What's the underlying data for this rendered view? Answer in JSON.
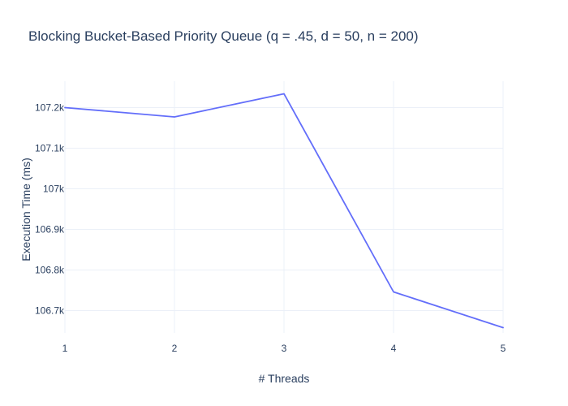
{
  "chart_data": {
    "type": "line",
    "title": "Blocking Bucket-Based Priority Queue (q = .45, d = 50, n = 200)",
    "xlabel": "# Threads",
    "ylabel": "Execution Time (ms)",
    "x": [
      1,
      2,
      3,
      4,
      5
    ],
    "series": [
      {
        "values": [
          107200,
          107177,
          107234,
          106746,
          106658
        ],
        "color": "#636efa"
      }
    ],
    "xlim": [
      1,
      5
    ],
    "ylim": [
      106645,
      107265
    ],
    "x_ticks": [
      1,
      2,
      3,
      4,
      5
    ],
    "x_tick_labels": [
      "1",
      "2",
      "3",
      "4",
      "5"
    ],
    "y_ticks": [
      106700,
      106800,
      106900,
      107000,
      107100,
      107200
    ],
    "y_tick_labels": [
      "106.7k",
      "106.8k",
      "106.9k",
      "107k",
      "107.1k",
      "107.2k"
    ],
    "grid": true,
    "legend": "none"
  }
}
